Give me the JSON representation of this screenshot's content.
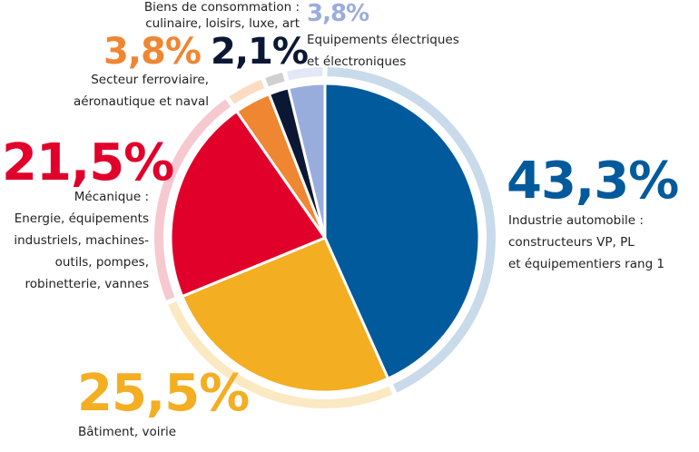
{
  "chart_data": {
    "type": "pie",
    "slices": [
      {
        "key": "auto",
        "value": 43.3,
        "value_label": "43,3%",
        "color": "#005a9c",
        "ring_color": "#c9dbea",
        "label_lines": [
          "Industrie automobile :",
          "constructeurs VP, PL",
          "et équipementiers rang 1"
        ]
      },
      {
        "key": "batiment",
        "value": 25.5,
        "value_label": "25,5%",
        "color": "#f3ae22",
        "ring_color": "#fbe9c4",
        "label_lines": [
          "Bâtiment, voirie"
        ]
      },
      {
        "key": "mecanique",
        "value": 21.5,
        "value_label": "21,5%",
        "color": "#e0002a",
        "ring_color": "#f6c9d1",
        "label_lines": [
          "Mécanique :",
          "Energie, équipements",
          "industriels, machines-",
          "outils, pompes,",
          "robinetterie, vannes"
        ]
      },
      {
        "key": "ferroviaire",
        "value": 3.8,
        "value_label": "3,8%",
        "color": "#ef8632",
        "ring_color": "#fbdcc3",
        "label_lines": [
          "Secteur ferroviaire,",
          "aéronautique et naval"
        ]
      },
      {
        "key": "conso",
        "value": 2.1,
        "value_label": "2,1%",
        "color": "#0b1834",
        "ring_color": "#d0d0d0",
        "label_lines": [
          "Biens de consommation :",
          "culinaire, loisirs, luxe, art"
        ]
      },
      {
        "key": "electrique",
        "value": 3.8,
        "value_label": "3,8%",
        "color": "#99addd",
        "ring_color": "#e2e8f5",
        "label_lines": [
          "Equipements électriques",
          "et électroniques"
        ]
      }
    ]
  }
}
